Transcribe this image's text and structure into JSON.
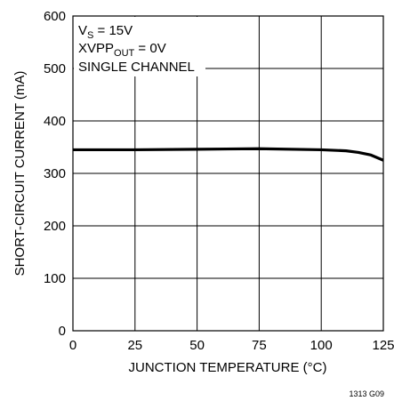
{
  "chart_data": {
    "type": "line",
    "title": "",
    "xlabel": "JUNCTION TEMPERATURE (°C)",
    "ylabel": "SHORT-CIRCUIT CURRENT (mA)",
    "xlim": [
      0,
      125
    ],
    "ylim": [
      0,
      600
    ],
    "x_ticks": [
      "0",
      "25",
      "50",
      "75",
      "100",
      "125"
    ],
    "y_ticks": [
      "0",
      "100",
      "200",
      "300",
      "400",
      "500",
      "600"
    ],
    "grid": true,
    "series": [
      {
        "x": [
          0,
          25,
          50,
          75,
          100,
          110,
          115,
          120,
          125
        ],
        "y": [
          345,
          345,
          346,
          347,
          345,
          343,
          340,
          335,
          325
        ]
      }
    ],
    "annotations": {
      "line1_main": "V",
      "line1_sub": "S",
      "line1_rest": " = 15V",
      "line2_main": "XVPP",
      "line2_sub": "OUT",
      "line2_rest": " = 0V",
      "line3": "SINGLE CHANNEL"
    },
    "figure_code": "1313 G09"
  }
}
